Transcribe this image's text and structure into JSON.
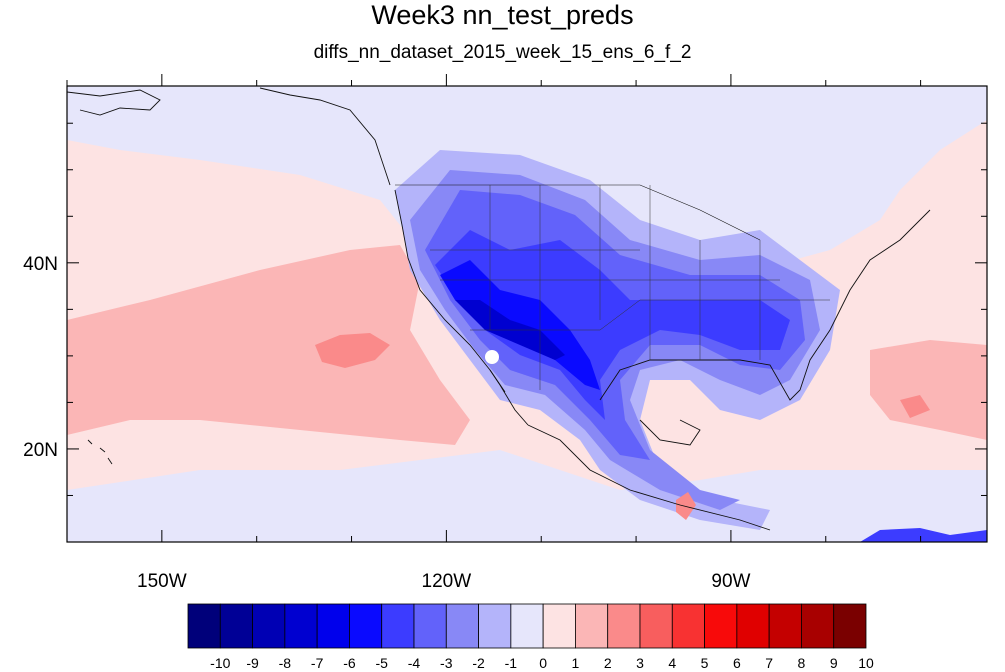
{
  "title": "Week3 nn_test_preds",
  "subtitle": "diffs_nn_dataset_2015_week_15_ens_6_f_2",
  "map": {
    "lon_range": [
      -160,
      -63
    ],
    "lat_range": [
      10,
      59
    ],
    "background_color": "#fde3e3"
  },
  "x_ticks": [
    {
      "lon": -150,
      "label": "150W"
    },
    {
      "lon": -120,
      "label": "120W"
    },
    {
      "lon": -90,
      "label": "90W"
    }
  ],
  "y_ticks": [
    {
      "lat": 40,
      "label": "40N"
    },
    {
      "lat": 20,
      "label": "20N"
    }
  ],
  "colorbar": {
    "labels": [
      "-10",
      "-9",
      "-8",
      "-7",
      "-6",
      "-5",
      "-4",
      "-3",
      "-2",
      "-1",
      "0",
      "1",
      "2",
      "3",
      "4",
      "5",
      "6",
      "7",
      "8",
      "9",
      "10"
    ],
    "colors": [
      "#00007a",
      "#000096",
      "#0000b4",
      "#0000d0",
      "#0000ec",
      "#0a0aff",
      "#3c3cff",
      "#6262fa",
      "#8888f6",
      "#b4b4fa",
      "#e6e6fb",
      "#fde3e3",
      "#fbb6b6",
      "#fa8a8a",
      "#f85e5e",
      "#f83232",
      "#f80a0a",
      "#e00000",
      "#c40000",
      "#a80000",
      "#7a0000"
    ]
  }
}
